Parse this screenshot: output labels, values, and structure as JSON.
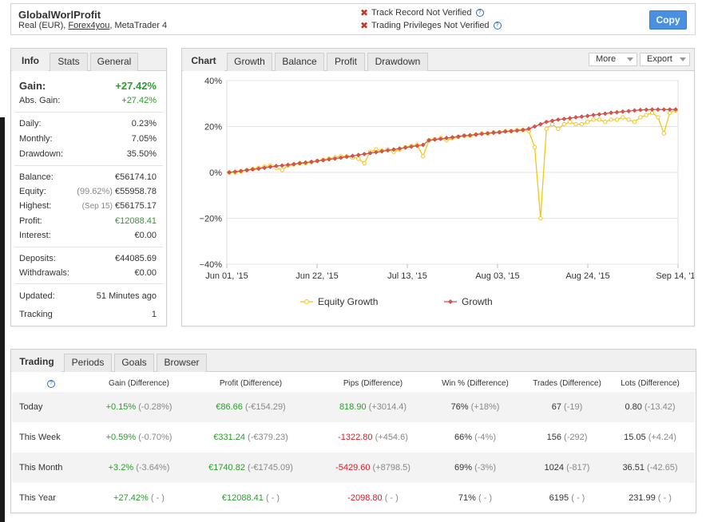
{
  "header": {
    "account_name": "GlobalWorlProfit",
    "account_type": "Real (EUR),",
    "broker": "Forex4you",
    "platform": ", MetaTrader 4",
    "track_record": "Track Record Not Verified",
    "trading_privileges": "Trading Privileges Not Verified",
    "copy_label": "Copy"
  },
  "info": {
    "tabs": [
      "Info",
      "Stats",
      "General"
    ],
    "gain_label": "Gain:",
    "gain_value": "+27.42%",
    "abs_gain_label": "Abs. Gain:",
    "abs_gain_value": "+27.42%",
    "daily_label": "Daily:",
    "daily_value": "0.23%",
    "monthly_label": "Monthly:",
    "monthly_value": "7.05%",
    "drawdown_label": "Drawdown:",
    "drawdown_value": "35.50%",
    "balance_label": "Balance:",
    "balance_value": "€56174.10",
    "equity_label": "Equity:",
    "equity_pct": "(99.62%)",
    "equity_value": "€55958.78",
    "highest_label": "Highest:",
    "highest_date": "(Sep 15)",
    "highest_value": "€56175.17",
    "profit_label": "Profit:",
    "profit_value": "€12088.41",
    "interest_label": "Interest:",
    "interest_value": "€0.00",
    "deposits_label": "Deposits:",
    "deposits_value": "€44085.69",
    "withdrawals_label": "Withdrawals:",
    "withdrawals_value": "€0.00",
    "updated_label": "Updated:",
    "updated_value": "51 Minutes ago",
    "tracking_label": "Tracking",
    "tracking_value": "1"
  },
  "chart_panel": {
    "tabs": [
      "Chart",
      "Growth",
      "Balance",
      "Profit",
      "Drawdown"
    ],
    "more_label": "More",
    "export_label": "Export"
  },
  "chart_data": {
    "type": "line",
    "xlabel": "",
    "ylabel": "",
    "ylim": [
      -40,
      40
    ],
    "y_ticks": [
      "40%",
      "20%",
      "0%",
      "−20%",
      "−40%"
    ],
    "x_ticks": [
      "Jun 01, '15",
      "Jun 22, '15",
      "Jul 13, '15",
      "Aug 03, '15",
      "Aug 24, '15",
      "Sep 14, '15"
    ],
    "legend": "bottom",
    "series": [
      {
        "name": "Equity Growth",
        "color": "#f5c518",
        "values": [
          0,
          0,
          0.5,
          1,
          1.5,
          2,
          2.5,
          3,
          2,
          1,
          3,
          3.5,
          4,
          4,
          4.5,
          5,
          5.5,
          6,
          6.5,
          7,
          7,
          6.5,
          6,
          4,
          9,
          10,
          9.5,
          10,
          9,
          10,
          11,
          11.5,
          12,
          7,
          14,
          14.5,
          15,
          14,
          15,
          15.5,
          16,
          16,
          16.5,
          17,
          17,
          17.5,
          17.5,
          18,
          18,
          18.5,
          18.5,
          18,
          11,
          -20,
          19,
          21,
          19,
          21,
          22,
          21,
          21,
          22,
          23,
          23,
          22,
          23,
          23,
          24,
          23,
          22,
          24,
          25,
          26,
          24,
          17,
          26,
          27
        ]
      },
      {
        "name": "Growth",
        "color": "#d9534f",
        "values": [
          0,
          0.3,
          0.6,
          1,
          1.3,
          1.6,
          2,
          2.4,
          2.8,
          3,
          3.3,
          3.6,
          4,
          4.3,
          4.6,
          5,
          5.3,
          5.7,
          6,
          6.4,
          6.8,
          7.2,
          7.6,
          8,
          8.4,
          8.8,
          9.2,
          9.6,
          10,
          10.4,
          10.8,
          11.2,
          11.6,
          12,
          14,
          14.3,
          14.6,
          15,
          15.3,
          15.6,
          16,
          16.2,
          16.5,
          16.8,
          17,
          17.3,
          17.5,
          17.8,
          18,
          18.2,
          18.5,
          19,
          20,
          21,
          22,
          22.5,
          23,
          23.3,
          23.6,
          24,
          24.3,
          24.6,
          25,
          25.3,
          25.6,
          26,
          26.2,
          26.5,
          26.7,
          27,
          27.2,
          27.3,
          27.4,
          27.4,
          27.4,
          27.42,
          27.42
        ]
      }
    ]
  },
  "trading": {
    "tabs": [
      "Trading",
      "Periods",
      "Goals",
      "Browser"
    ],
    "columns": [
      "Gain (Difference)",
      "Profit (Difference)",
      "Pips (Difference)",
      "Win % (Difference)",
      "Trades (Difference)",
      "Lots (Difference)"
    ],
    "rows": [
      {
        "label": "Today",
        "gain": "+0.15%",
        "gain_diff": "(-0.28%)",
        "profit": "€86.66",
        "profit_diff": "(-€154.29)",
        "pips": "818.90",
        "pips_diff": "(+3014.4)",
        "pips_color": "green",
        "win": "76%",
        "win_diff": "(+18%)",
        "trades": "67",
        "trades_diff": "(-19)",
        "lots": "0.80",
        "lots_diff": "(-13.42)"
      },
      {
        "label": "This Week",
        "gain": "+0.59%",
        "gain_diff": "(-0.70%)",
        "profit": "€331.24",
        "profit_diff": "(-€379.23)",
        "pips": "-1322.80",
        "pips_diff": "(+454.6)",
        "pips_color": "red",
        "win": "66%",
        "win_diff": "(-4%)",
        "trades": "156",
        "trades_diff": "(-292)",
        "lots": "15.05",
        "lots_diff": "(+4.24)"
      },
      {
        "label": "This Month",
        "gain": "+3.2%",
        "gain_diff": "(-3.64%)",
        "profit": "€1740.82",
        "profit_diff": "(-€1745.09)",
        "pips": "-5429.60",
        "pips_diff": "(+8798.5)",
        "pips_color": "red",
        "win": "69%",
        "win_diff": "(-3%)",
        "trades": "1024",
        "trades_diff": "(-817)",
        "lots": "36.51",
        "lots_diff": "(-42.65)"
      },
      {
        "label": "This Year",
        "gain": "+27.42%",
        "gain_diff": "( - )",
        "profit": "€12088.41",
        "profit_diff": "( - )",
        "pips": "-2098.80",
        "pips_diff": "( - )",
        "pips_color": "red",
        "win": "71%",
        "win_diff": "( - )",
        "trades": "6195",
        "trades_diff": "( - )",
        "lots": "231.99",
        "lots_diff": "( - )"
      }
    ]
  }
}
